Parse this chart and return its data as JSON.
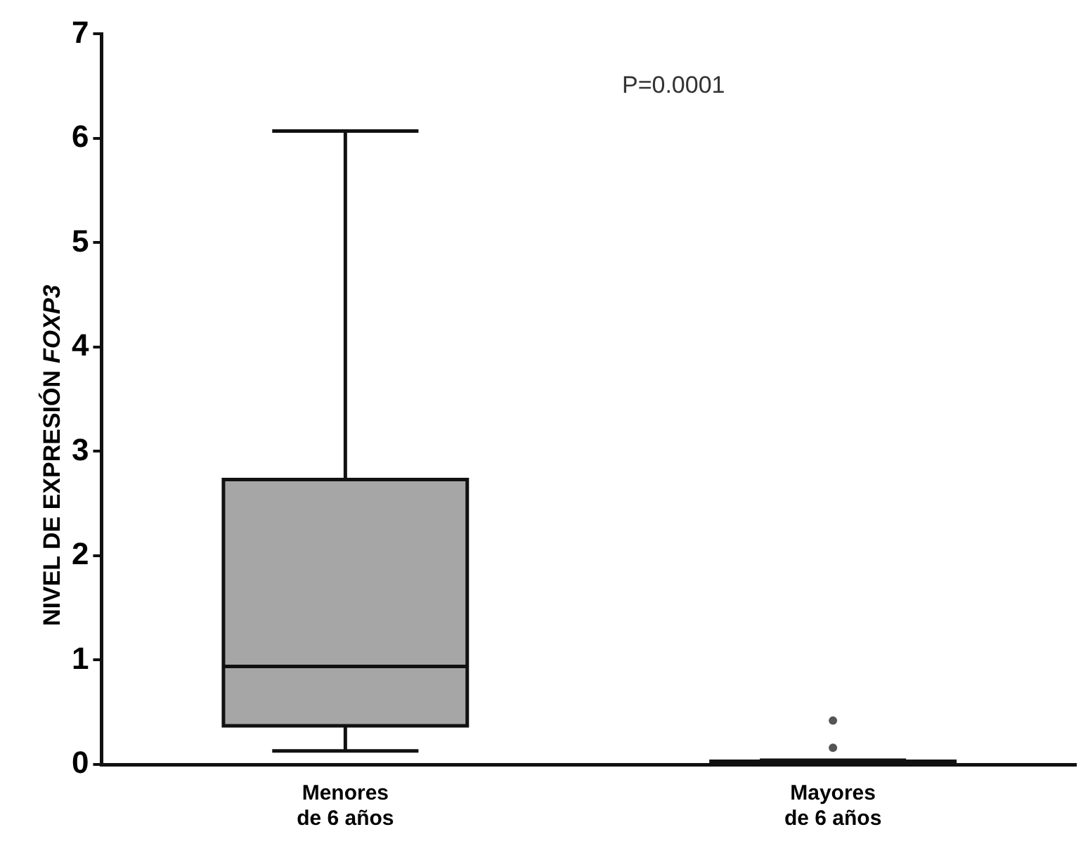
{
  "chart_data": {
    "type": "box",
    "ylabel": "NIVEL DE EXPRESIÓN FOXP3",
    "categories": [
      "Menores\nde 6 años",
      "Mayores\nde 6 años"
    ],
    "boxes": [
      {
        "low": 0.13,
        "q1": 0.37,
        "median": 0.94,
        "q3": 2.73,
        "high": 6.07
      },
      {
        "low": 0,
        "q1": 0,
        "median": 0.01,
        "q3": 0.03,
        "high": 0.04,
        "outliers": [
          0.16,
          0.42
        ]
      }
    ],
    "color": "#a6a6a6",
    "ylim": [
      0,
      7
    ],
    "yticks": [
      0,
      1,
      2,
      3,
      4,
      5,
      6,
      7
    ],
    "grid": false,
    "legend": false,
    "annotations": [
      "P=0.0001"
    ]
  }
}
